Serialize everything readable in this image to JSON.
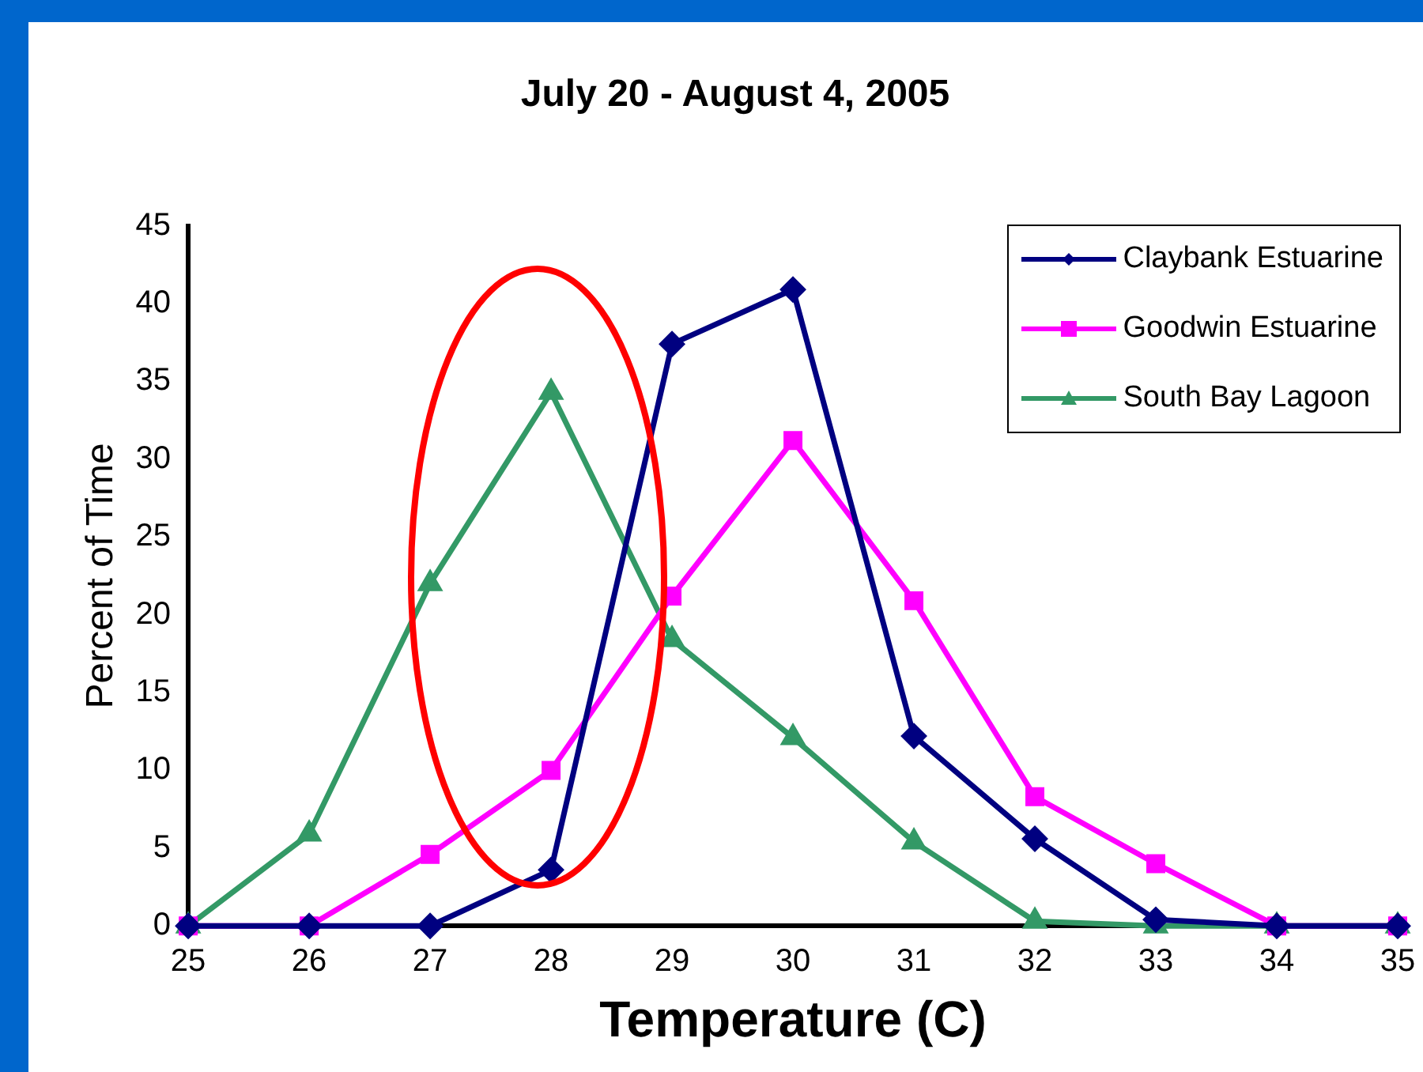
{
  "chart_data": {
    "type": "line",
    "title": "July 20 - August 4, 2005",
    "xlabel": "Temperature (C)",
    "ylabel": "Percent of Time",
    "x": [
      25,
      26,
      27,
      28,
      29,
      30,
      31,
      32,
      33,
      34,
      35
    ],
    "series": [
      {
        "name": "Claybank Estuarine",
        "color": "#000080",
        "marker": "diamond",
        "values": [
          0,
          0,
          0,
          3.6,
          37.4,
          40.9,
          12.2,
          5.6,
          0.4,
          0,
          0
        ]
      },
      {
        "name": "Goodwin Estuarine",
        "color": "#ff00ff",
        "marker": "square",
        "values": [
          0,
          0,
          4.6,
          10,
          21.2,
          31.2,
          20.9,
          8.3,
          4,
          0,
          0
        ]
      },
      {
        "name": "South Bay Lagoon",
        "color": "#339966",
        "marker": "triangle",
        "values": [
          0,
          5.9,
          22,
          34.3,
          18.4,
          12.1,
          5.4,
          0.3,
          0,
          0,
          0
        ]
      }
    ],
    "xlim": [
      25,
      35
    ],
    "xticks": [
      25,
      26,
      27,
      28,
      29,
      30,
      31,
      32,
      33,
      34,
      35
    ],
    "ylim": [
      0,
      45
    ],
    "yticks": [
      0,
      5,
      10,
      15,
      20,
      25,
      30,
      35,
      40,
      45
    ],
    "grid": false,
    "legend": "top right",
    "line_style": "solid"
  }
}
